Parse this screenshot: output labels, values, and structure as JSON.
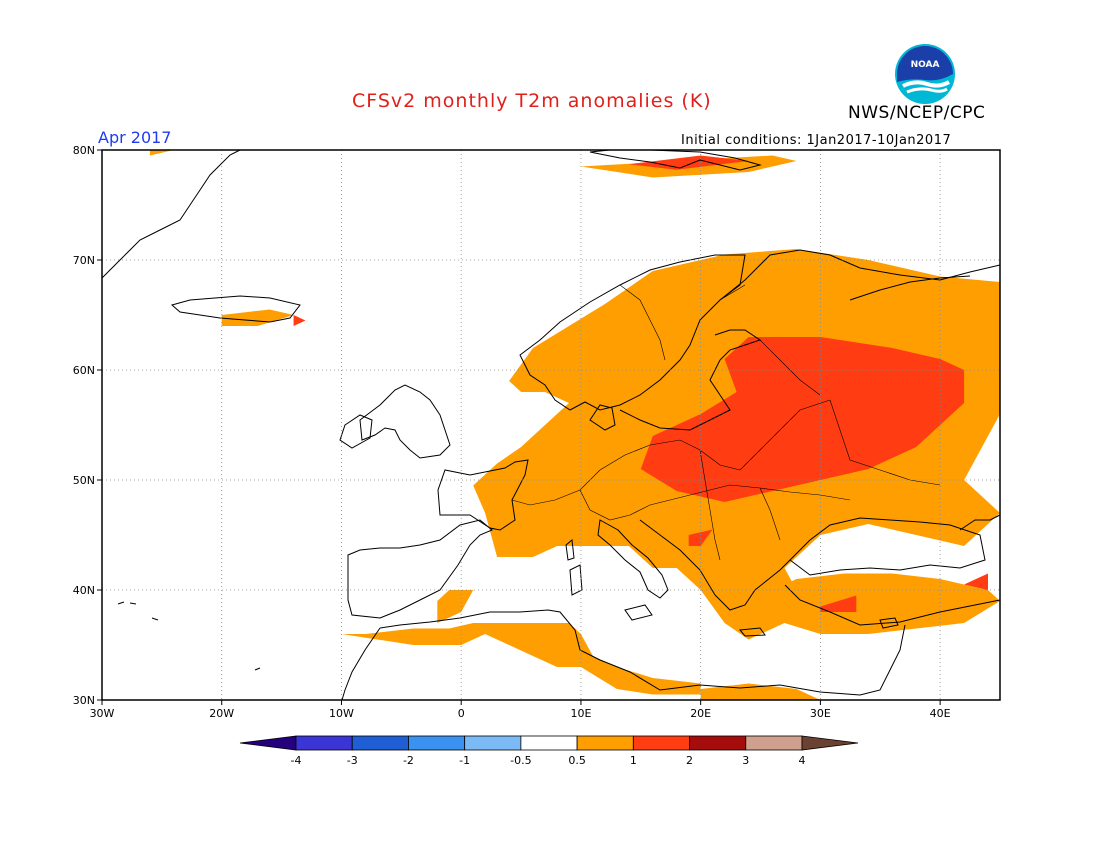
{
  "header": {
    "title": "CFSv2 monthly T2m anomalies (K)",
    "agency": "NWS/NCEP/CPC",
    "month": "Apr 2017",
    "initial_conditions": "Initial conditions: 1Jan2017-10Jan2017"
  },
  "logo": {
    "text": "NOAA",
    "colors": {
      "outer": "#00b7d6",
      "inner": "#1a3fa8"
    }
  },
  "map": {
    "lon_range": [
      -30,
      45
    ],
    "lat_range": [
      30,
      80
    ],
    "x_ticks": [
      {
        "lon": -30,
        "label": "30W"
      },
      {
        "lon": -20,
        "label": "20W"
      },
      {
        "lon": -10,
        "label": "10W"
      },
      {
        "lon": 0,
        "label": "0"
      },
      {
        "lon": 10,
        "label": "10E"
      },
      {
        "lon": 20,
        "label": "20E"
      },
      {
        "lon": 30,
        "label": "30E"
      },
      {
        "lon": 40,
        "label": "40E"
      }
    ],
    "y_ticks": [
      {
        "lat": 30,
        "label": "30N"
      },
      {
        "lat": 40,
        "label": "40N"
      },
      {
        "lat": 50,
        "label": "50N"
      },
      {
        "lat": 60,
        "label": "60N"
      },
      {
        "lat": 70,
        "label": "70N"
      },
      {
        "lat": 80,
        "label": "80N"
      }
    ],
    "anomaly_colors": {
      "0.5-1": "#ff9e00",
      "1-2": "#ff3c12"
    },
    "warm_regions_0_5_to_1": [
      {
        "name": "eastern-europe-scandinavia",
        "lonlat": [
          [
            4,
            59
          ],
          [
            6,
            62
          ],
          [
            9,
            64
          ],
          [
            12,
            66
          ],
          [
            16,
            69
          ],
          [
            22,
            70.5
          ],
          [
            28,
            71
          ],
          [
            34,
            70
          ],
          [
            40,
            68.5
          ],
          [
            45,
            68
          ],
          [
            45,
            56
          ],
          [
            42,
            50
          ],
          [
            45,
            47
          ],
          [
            42,
            44
          ],
          [
            38,
            45
          ],
          [
            34,
            46
          ],
          [
            30,
            45
          ],
          [
            27,
            42
          ],
          [
            28,
            40
          ],
          [
            27,
            37
          ],
          [
            24,
            35.5
          ],
          [
            22,
            37
          ],
          [
            20,
            40
          ],
          [
            18,
            42
          ],
          [
            16,
            42
          ],
          [
            14,
            44
          ],
          [
            12,
            44
          ],
          [
            10,
            44
          ],
          [
            8,
            44
          ],
          [
            6,
            43
          ],
          [
            4,
            43
          ],
          [
            3,
            43
          ],
          [
            2,
            47
          ],
          [
            1,
            49.5
          ],
          [
            3,
            51.5
          ],
          [
            5,
            53
          ],
          [
            7,
            55
          ],
          [
            9,
            57
          ],
          [
            7,
            58
          ],
          [
            5,
            58
          ]
        ]
      },
      {
        "name": "north-africa-1",
        "lonlat": [
          [
            -10,
            36
          ],
          [
            -4,
            35
          ],
          [
            0,
            35
          ],
          [
            2,
            36
          ],
          [
            4,
            35
          ],
          [
            6,
            34
          ],
          [
            8,
            33
          ],
          [
            10,
            33
          ],
          [
            11,
            34
          ],
          [
            10,
            36
          ],
          [
            9,
            37
          ],
          [
            7,
            37
          ],
          [
            5,
            37
          ],
          [
            3,
            37
          ],
          [
            1,
            37
          ],
          [
            -1,
            36.5
          ],
          [
            -4,
            36.5
          ],
          [
            -8,
            36
          ]
        ]
      },
      {
        "name": "libya-coast",
        "lonlat": [
          [
            8,
            34
          ],
          [
            10,
            33
          ],
          [
            13,
            31
          ],
          [
            16,
            30.5
          ],
          [
            20,
            30.5
          ],
          [
            20,
            31.5
          ],
          [
            16,
            32
          ],
          [
            13,
            33
          ],
          [
            10,
            34.5
          ]
        ]
      },
      {
        "name": "turkey",
        "lonlat": [
          [
            26,
            40
          ],
          [
            28,
            41
          ],
          [
            32,
            41.5
          ],
          [
            36,
            41.5
          ],
          [
            40,
            41
          ],
          [
            44,
            40
          ],
          [
            45,
            39
          ],
          [
            42,
            37
          ],
          [
            38,
            36.5
          ],
          [
            34,
            36
          ],
          [
            30,
            36
          ],
          [
            27,
            37
          ]
        ]
      },
      {
        "name": "iberia-east",
        "lonlat": [
          [
            -2,
            37
          ],
          [
            0,
            38
          ],
          [
            0.5,
            39
          ],
          [
            1,
            40
          ],
          [
            -1,
            40
          ],
          [
            -2,
            39
          ]
        ]
      },
      {
        "name": "egypt-coast",
        "lonlat": [
          [
            20,
            31
          ],
          [
            24,
            31.5
          ],
          [
            28,
            31
          ],
          [
            30,
            30
          ],
          [
            20,
            30
          ]
        ]
      },
      {
        "name": "iceland",
        "lonlat": [
          [
            -20,
            64
          ],
          [
            -17,
            64
          ],
          [
            -14,
            65
          ],
          [
            -16,
            65.5
          ],
          [
            -20,
            65
          ]
        ]
      },
      {
        "name": "svalbard",
        "lonlat": [
          [
            10,
            78.5
          ],
          [
            18,
            79
          ],
          [
            26,
            79.5
          ],
          [
            28,
            79
          ],
          [
            24,
            78
          ],
          [
            16,
            77.5
          ]
        ]
      },
      {
        "name": "greenland-edge",
        "lonlat": [
          [
            -26,
            79.5
          ],
          [
            -24,
            80
          ],
          [
            -26,
            80
          ]
        ]
      }
    ],
    "warm_regions_1_to_2": [
      {
        "name": "central-russia-belarus",
        "lonlat": [
          [
            15,
            51
          ],
          [
            18,
            49
          ],
          [
            22,
            48
          ],
          [
            26,
            49
          ],
          [
            30,
            50
          ],
          [
            34,
            51
          ],
          [
            38,
            53
          ],
          [
            40,
            55
          ],
          [
            42,
            57
          ],
          [
            42,
            60
          ],
          [
            40,
            61
          ],
          [
            36,
            62
          ],
          [
            30,
            63
          ],
          [
            24,
            63
          ],
          [
            22,
            61
          ],
          [
            23,
            58
          ],
          [
            20,
            56
          ],
          [
            16,
            54
          ]
        ]
      },
      {
        "name": "balkans-spot",
        "lonlat": [
          [
            19,
            45
          ],
          [
            21,
            45.5
          ],
          [
            20,
            44
          ],
          [
            19,
            44
          ]
        ]
      },
      {
        "name": "turkey-spot",
        "lonlat": [
          [
            30,
            38.5
          ],
          [
            33,
            39.5
          ],
          [
            33,
            38
          ],
          [
            30,
            38
          ]
        ]
      },
      {
        "name": "iceland-spot",
        "lonlat": [
          [
            -14,
            64
          ],
          [
            -13,
            64.5
          ],
          [
            -14,
            65
          ]
        ]
      },
      {
        "name": "svalbard-spot",
        "lonlat": [
          [
            14,
            78.7
          ],
          [
            20,
            79.5
          ],
          [
            24,
            79
          ],
          [
            18,
            78.2
          ]
        ]
      },
      {
        "name": "caucasus-spot",
        "lonlat": [
          [
            42,
            40.5
          ],
          [
            44,
            41.5
          ],
          [
            44,
            40
          ]
        ]
      }
    ]
  },
  "colorbar": {
    "labels": [
      "-4",
      "-3",
      "-2",
      "-1",
      "-0.5",
      "0.5",
      "1",
      "2",
      "3",
      "4"
    ],
    "colors": [
      "#24007f",
      "#3a35d4",
      "#1f5ed4",
      "#3a92f0",
      "#7cbaf5",
      "#ffffff",
      "#ff9e00",
      "#ff3c12",
      "#a50d0d",
      "#d0a08e",
      "#6b4232"
    ]
  }
}
